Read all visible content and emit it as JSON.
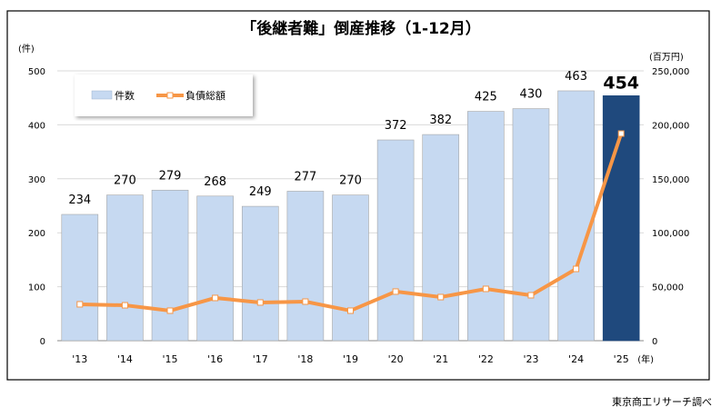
{
  "chart_data": {
    "type": "bar+line",
    "title": "「後継者難」倒産推移（1-12月）",
    "y_left_unit": "(件)",
    "y_right_unit": "(百万円)",
    "x_unit": "(年)",
    "categories": [
      "'13",
      "'14",
      "'15",
      "'16",
      "'17",
      "'18",
      "'19",
      "'20",
      "'21",
      "'22",
      "'23",
      "'24",
      "'25"
    ],
    "ylim_left": [
      0,
      500
    ],
    "ylim_right": [
      0,
      250000
    ],
    "y_left_ticks": [
      0,
      100,
      200,
      300,
      400,
      500
    ],
    "y_right_ticks": [
      "0",
      "50,000",
      "100,000",
      "150,000",
      "200,000",
      "250,000"
    ],
    "grid": true,
    "legend_placement": "top-left",
    "series": [
      {
        "name": "件数",
        "type": "bar",
        "axis": "left",
        "values": [
          234,
          270,
          279,
          268,
          249,
          277,
          270,
          372,
          382,
          425,
          430,
          463,
          454
        ],
        "color": "#c6d9f1",
        "highlight_color": "#1f497d"
      },
      {
        "name": "負債総額",
        "type": "line",
        "axis": "right",
        "values": [
          33700,
          32800,
          27800,
          39600,
          35400,
          36200,
          27800,
          45500,
          40400,
          48000,
          42100,
          66500,
          191900
        ],
        "color": "#f79646"
      }
    ]
  },
  "source": "東京商工リサーチ調べ"
}
